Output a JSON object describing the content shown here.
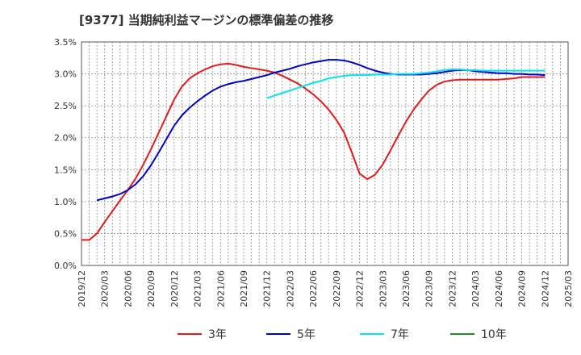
{
  "chart_data": {
    "type": "line",
    "title": "[9377]  当期純利益マージンの標準偏差の推移",
    "xlabel": "",
    "ylabel": "",
    "ylim": [
      0,
      3.5
    ],
    "y_ticks": [
      "0.0%",
      "0.5%",
      "1.0%",
      "1.5%",
      "2.0%",
      "2.5%",
      "3.0%",
      "3.5%"
    ],
    "x_ticks": [
      "2019/12",
      "2020/03",
      "2020/06",
      "2020/09",
      "2020/12",
      "2021/03",
      "2021/06",
      "2021/09",
      "2021/12",
      "2022/03",
      "2022/06",
      "2022/09",
      "2022/12",
      "2023/03",
      "2023/06",
      "2023/09",
      "2023/12",
      "2024/03",
      "2024/06",
      "2024/09",
      "2024/12",
      "2025/03"
    ],
    "grid": true,
    "legend_position": "bottom",
    "series": [
      {
        "name": "3年",
        "color": "#e31a1c",
        "points": [
          [
            "2019/12",
            0.4
          ],
          [
            "2020/01",
            0.4
          ],
          [
            "2020/02",
            0.5
          ],
          [
            "2020/03",
            0.68
          ],
          [
            "2020/04",
            0.85
          ],
          [
            "2020/05",
            1.02
          ],
          [
            "2020/06",
            1.18
          ],
          [
            "2020/07",
            1.36
          ],
          [
            "2020/08",
            1.58
          ],
          [
            "2020/09",
            1.82
          ],
          [
            "2020/10",
            2.08
          ],
          [
            "2020/11",
            2.34
          ],
          [
            "2020/12",
            2.6
          ],
          [
            "2021/01",
            2.8
          ],
          [
            "2021/02",
            2.93
          ],
          [
            "2021/03",
            3.01
          ],
          [
            "2021/04",
            3.07
          ],
          [
            "2021/05",
            3.12
          ],
          [
            "2021/06",
            3.15
          ],
          [
            "2021/07",
            3.16
          ],
          [
            "2021/08",
            3.14
          ],
          [
            "2021/09",
            3.11
          ],
          [
            "2021/10",
            3.09
          ],
          [
            "2021/11",
            3.07
          ],
          [
            "2021/12",
            3.05
          ],
          [
            "2022/01",
            3.02
          ],
          [
            "2022/02",
            2.97
          ],
          [
            "2022/03",
            2.91
          ],
          [
            "2022/04",
            2.85
          ],
          [
            "2022/05",
            2.77
          ],
          [
            "2022/06",
            2.68
          ],
          [
            "2022/07",
            2.57
          ],
          [
            "2022/08",
            2.44
          ],
          [
            "2022/09",
            2.28
          ],
          [
            "2022/10",
            2.08
          ],
          [
            "2022/11",
            1.77
          ],
          [
            "2022/12",
            1.44
          ],
          [
            "2023/01",
            1.35
          ],
          [
            "2023/02",
            1.42
          ],
          [
            "2023/03",
            1.58
          ],
          [
            "2023/04",
            1.8
          ],
          [
            "2023/05",
            2.03
          ],
          [
            "2023/06",
            2.25
          ],
          [
            "2023/07",
            2.44
          ],
          [
            "2023/08",
            2.6
          ],
          [
            "2023/09",
            2.74
          ],
          [
            "2023/10",
            2.83
          ],
          [
            "2023/11",
            2.88
          ],
          [
            "2023/12",
            2.9
          ],
          [
            "2024/01",
            2.91
          ],
          [
            "2024/02",
            2.91
          ],
          [
            "2024/03",
            2.91
          ],
          [
            "2024/04",
            2.91
          ],
          [
            "2024/05",
            2.91
          ],
          [
            "2024/06",
            2.91
          ],
          [
            "2024/07",
            2.92
          ],
          [
            "2024/08",
            2.93
          ],
          [
            "2024/09",
            2.95
          ],
          [
            "2024/10",
            2.95
          ],
          [
            "2024/11",
            2.95
          ],
          [
            "2024/12",
            2.95
          ]
        ]
      },
      {
        "name": "5年",
        "color": "#0000cc",
        "points": [
          [
            "2020/02",
            1.02
          ],
          [
            "2020/03",
            1.05
          ],
          [
            "2020/04",
            1.08
          ],
          [
            "2020/05",
            1.12
          ],
          [
            "2020/06",
            1.18
          ],
          [
            "2020/07",
            1.27
          ],
          [
            "2020/08",
            1.4
          ],
          [
            "2020/09",
            1.57
          ],
          [
            "2020/10",
            1.77
          ],
          [
            "2020/11",
            1.98
          ],
          [
            "2020/12",
            2.19
          ],
          [
            "2021/01",
            2.35
          ],
          [
            "2021/02",
            2.47
          ],
          [
            "2021/03",
            2.57
          ],
          [
            "2021/04",
            2.66
          ],
          [
            "2021/05",
            2.74
          ],
          [
            "2021/06",
            2.8
          ],
          [
            "2021/07",
            2.84
          ],
          [
            "2021/08",
            2.87
          ],
          [
            "2021/09",
            2.89
          ],
          [
            "2021/10",
            2.92
          ],
          [
            "2021/11",
            2.95
          ],
          [
            "2021/12",
            2.98
          ],
          [
            "2022/01",
            3.02
          ],
          [
            "2022/02",
            3.05
          ],
          [
            "2022/03",
            3.08
          ],
          [
            "2022/04",
            3.12
          ],
          [
            "2022/05",
            3.15
          ],
          [
            "2022/06",
            3.18
          ],
          [
            "2022/07",
            3.2
          ],
          [
            "2022/08",
            3.22
          ],
          [
            "2022/09",
            3.22
          ],
          [
            "2022/10",
            3.21
          ],
          [
            "2022/11",
            3.18
          ],
          [
            "2022/12",
            3.14
          ],
          [
            "2023/01",
            3.09
          ],
          [
            "2023/02",
            3.05
          ],
          [
            "2023/03",
            3.02
          ],
          [
            "2023/04",
            3.0
          ],
          [
            "2023/05",
            2.99
          ],
          [
            "2023/06",
            2.99
          ],
          [
            "2023/07",
            2.99
          ],
          [
            "2023/08",
            2.99
          ],
          [
            "2023/09",
            3.0
          ],
          [
            "2023/10",
            3.01
          ],
          [
            "2023/11",
            3.03
          ],
          [
            "2023/12",
            3.05
          ],
          [
            "2024/01",
            3.06
          ],
          [
            "2024/02",
            3.06
          ],
          [
            "2024/03",
            3.04
          ],
          [
            "2024/04",
            3.03
          ],
          [
            "2024/05",
            3.02
          ],
          [
            "2024/06",
            3.01
          ],
          [
            "2024/07",
            3.01
          ],
          [
            "2024/08",
            3.0
          ],
          [
            "2024/09",
            3.0
          ],
          [
            "2024/10",
            2.99
          ],
          [
            "2024/11",
            2.99
          ],
          [
            "2024/12",
            2.98
          ]
        ]
      },
      {
        "name": "7年",
        "color": "#00e5ee",
        "points": [
          [
            "2021/12",
            2.62
          ],
          [
            "2022/01",
            2.66
          ],
          [
            "2022/02",
            2.7
          ],
          [
            "2022/03",
            2.74
          ],
          [
            "2022/04",
            2.78
          ],
          [
            "2022/05",
            2.82
          ],
          [
            "2022/06",
            2.86
          ],
          [
            "2022/07",
            2.89
          ],
          [
            "2022/08",
            2.93
          ],
          [
            "2022/09",
            2.95
          ],
          [
            "2022/10",
            2.97
          ],
          [
            "2022/11",
            2.98
          ],
          [
            "2022/12",
            2.98
          ],
          [
            "2023/01",
            2.98
          ],
          [
            "2023/02",
            2.99
          ],
          [
            "2023/03",
            2.99
          ],
          [
            "2023/04",
            2.99
          ],
          [
            "2023/05",
            3.0
          ],
          [
            "2023/06",
            3.0
          ],
          [
            "2023/07",
            3.0
          ],
          [
            "2023/08",
            3.01
          ],
          [
            "2023/09",
            3.02
          ],
          [
            "2023/10",
            3.04
          ],
          [
            "2023/11",
            3.06
          ],
          [
            "2023/12",
            3.07
          ],
          [
            "2024/01",
            3.07
          ],
          [
            "2024/02",
            3.06
          ],
          [
            "2024/03",
            3.06
          ],
          [
            "2024/04",
            3.05
          ],
          [
            "2024/05",
            3.05
          ],
          [
            "2024/06",
            3.05
          ],
          [
            "2024/07",
            3.05
          ],
          [
            "2024/08",
            3.05
          ],
          [
            "2024/09",
            3.05
          ],
          [
            "2024/10",
            3.05
          ],
          [
            "2024/11",
            3.05
          ],
          [
            "2024/12",
            3.05
          ]
        ]
      },
      {
        "name": "10年",
        "color": "#228b22",
        "points": []
      }
    ]
  }
}
